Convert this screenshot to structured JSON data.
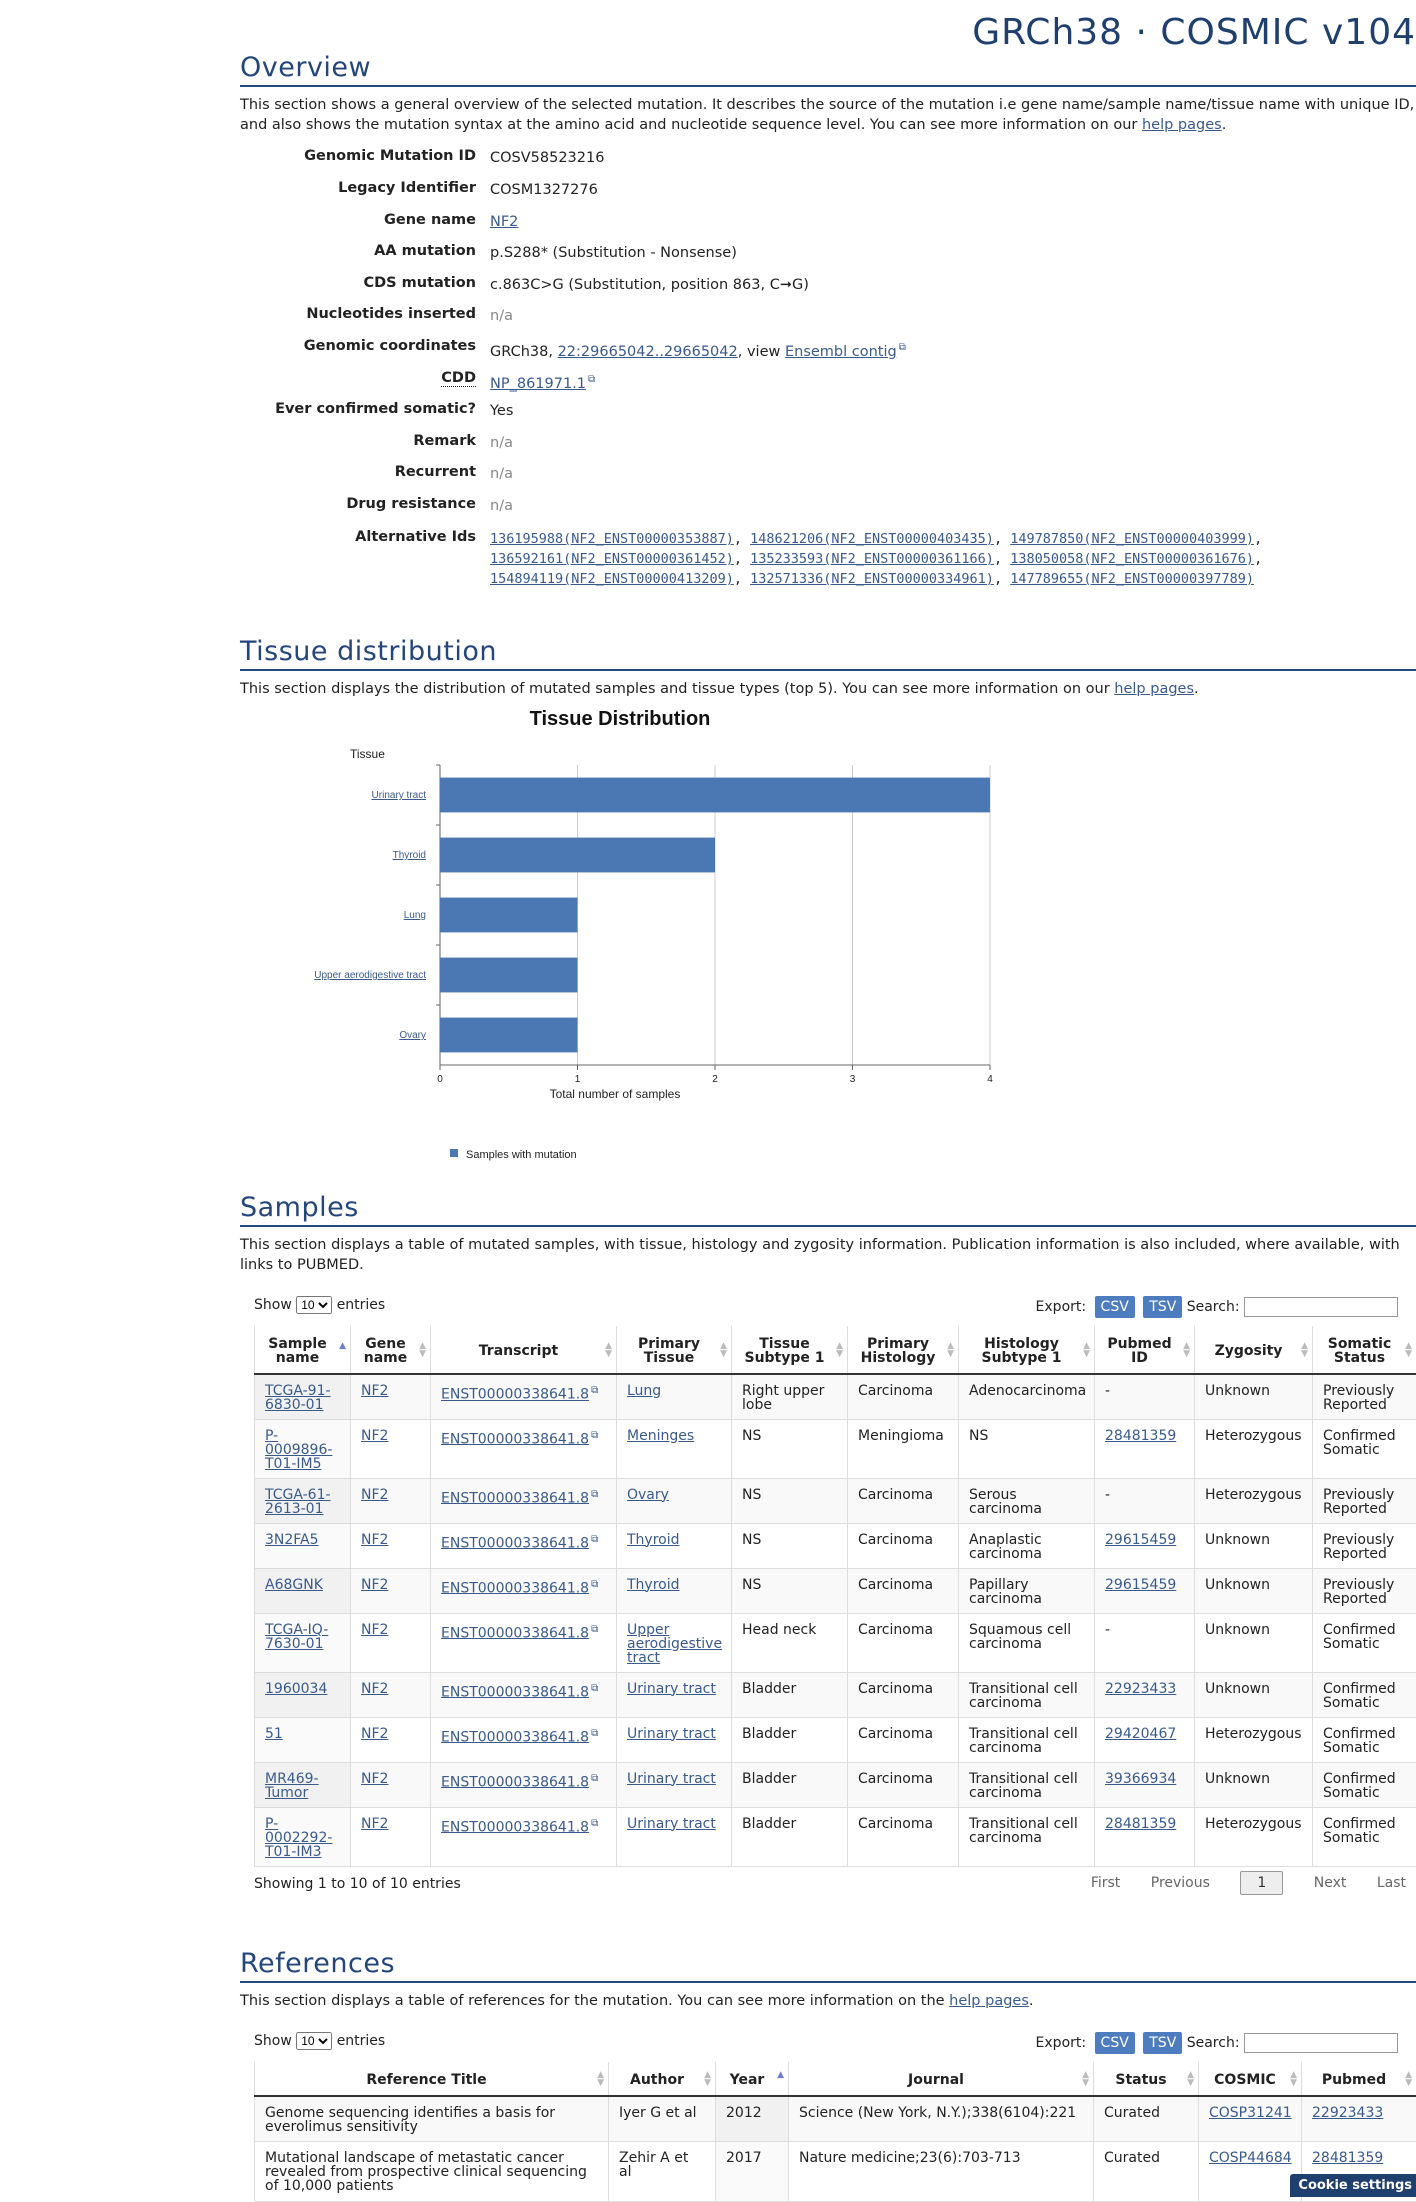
{
  "header": {
    "build": "GRCh38 · COSMIC v104"
  },
  "overview": {
    "title": "Overview",
    "desc_pre": "This section shows a general overview of the selected mutation. It describes the source of the mutation i.e gene name/sample name/tissue name with unique ID, and also shows the mutation syntax at the amino acid and nucleotide sequence level. You can see more information on our ",
    "desc_link": "help pages",
    "desc_post": ".",
    "fields": {
      "genomic_mutation_id": {
        "label": "Genomic Mutation ID",
        "value": "COSV58523216"
      },
      "legacy_identifier": {
        "label": "Legacy Identifier",
        "value": "COSM1327276"
      },
      "gene_name": {
        "label": "Gene name",
        "value": "NF2"
      },
      "aa_mutation": {
        "label": "AA mutation",
        "value": "p.S288* (Substitution - Nonsense)"
      },
      "cds_mutation": {
        "label": "CDS mutation",
        "value": "c.863C>G (Substitution, position 863, C➞G)"
      },
      "nucleotides_inserted": {
        "label": "Nucleotides inserted",
        "value": "n/a"
      },
      "genomic_coordinates": {
        "label": "Genomic coordinates",
        "prefix": "GRCh38, ",
        "coords": "22:29665042..29665042",
        "mid": ", view ",
        "contig": "Ensembl contig"
      },
      "cdd": {
        "label": "CDD",
        "value": "NP_861971.1"
      },
      "ever_confirmed_somatic": {
        "label": "Ever confirmed somatic?",
        "value": "Yes"
      },
      "remark": {
        "label": "Remark",
        "value": "n/a"
      },
      "recurrent": {
        "label": "Recurrent",
        "value": "n/a"
      },
      "drug_resistance": {
        "label": "Drug resistance",
        "value": "n/a"
      },
      "alternative_ids": {
        "label": "Alternative Ids"
      }
    },
    "alternative_ids": [
      "136195988(NF2_ENST00000353887)",
      "148621206(NF2_ENST00000403435)",
      "149787850(NF2_ENST00000403999)",
      "136592161(NF2_ENST00000361452)",
      "135233593(NF2_ENST00000361166)",
      "138050058(NF2_ENST00000361676)",
      "154894119(NF2_ENST00000413209)",
      "132571336(NF2_ENST00000334961)",
      "147789655(NF2_ENST00000397789)"
    ]
  },
  "tissue": {
    "title": "Tissue distribution",
    "desc_pre": "This section displays the distribution of mutated samples and tissue types (top 5). You can see more information on our ",
    "desc_link": "help pages",
    "desc_post": "."
  },
  "chart_data": {
    "type": "bar",
    "orientation": "horizontal",
    "title": "Tissue Distribution",
    "categories": [
      "Urinary tract",
      "Thyroid",
      "Lung",
      "Upper aerodigestive tract",
      "Ovary"
    ],
    "series": [
      {
        "name": "Samples with mutation",
        "values": [
          4,
          2,
          1,
          1,
          1
        ]
      }
    ],
    "xlabel": "Total number of samples",
    "ylabel": "Tissue",
    "xlim": [
      0,
      4
    ],
    "xticks": [
      0,
      1,
      2,
      3,
      4
    ],
    "grid": true,
    "legend": "bottom",
    "color": "#4b77b3"
  },
  "samples": {
    "title": "Samples",
    "desc": "This section displays a table of mutated samples, with tissue, histology and zygosity information. Publication information is also included, where available, with links to PUBMED.",
    "show_label": "Show",
    "page_size": "10",
    "entries_label": "entries",
    "export_label": "Export:",
    "csv": "CSV",
    "tsv": "TSV",
    "search_label": "Search:",
    "columns": [
      "Sample name",
      "Gene name",
      "Transcript",
      "Primary Tissue",
      "Tissue Subtype 1",
      "Primary Histology",
      "Histology Subtype 1",
      "Pubmed ID",
      "Zygosity",
      "Somatic Status"
    ],
    "rows": [
      [
        "TCGA-91-6830-01",
        "NF2",
        "ENST00000338641.8",
        "Lung",
        "Right upper lobe",
        "Carcinoma",
        "Adenocarcinoma",
        "-",
        "Unknown",
        "Previously Reported"
      ],
      [
        "P-0009896-T01-IM5",
        "NF2",
        "ENST00000338641.8",
        "Meninges",
        "NS",
        "Meningioma",
        "NS",
        "28481359",
        "Heterozygous",
        "Confirmed Somatic"
      ],
      [
        "TCGA-61-2613-01",
        "NF2",
        "ENST00000338641.8",
        "Ovary",
        "NS",
        "Carcinoma",
        "Serous carcinoma",
        "-",
        "Heterozygous",
        "Previously Reported"
      ],
      [
        "3N2FA5",
        "NF2",
        "ENST00000338641.8",
        "Thyroid",
        "NS",
        "Carcinoma",
        "Anaplastic carcinoma",
        "29615459",
        "Unknown",
        "Previously Reported"
      ],
      [
        "A68GNK",
        "NF2",
        "ENST00000338641.8",
        "Thyroid",
        "NS",
        "Carcinoma",
        "Papillary carcinoma",
        "29615459",
        "Unknown",
        "Previously Reported"
      ],
      [
        "TCGA-IQ-7630-01",
        "NF2",
        "ENST00000338641.8",
        "Upper aerodigestive tract",
        "Head neck",
        "Carcinoma",
        "Squamous cell carcinoma",
        "-",
        "Unknown",
        "Confirmed Somatic"
      ],
      [
        "1960034",
        "NF2",
        "ENST00000338641.8",
        "Urinary tract",
        "Bladder",
        "Carcinoma",
        "Transitional cell carcinoma",
        "22923433",
        "Unknown",
        "Confirmed Somatic"
      ],
      [
        "51",
        "NF2",
        "ENST00000338641.8",
        "Urinary tract",
        "Bladder",
        "Carcinoma",
        "Transitional cell carcinoma",
        "29420467",
        "Heterozygous",
        "Confirmed Somatic"
      ],
      [
        "MR469-Tumor",
        "NF2",
        "ENST00000338641.8",
        "Urinary tract",
        "Bladder",
        "Carcinoma",
        "Transitional cell carcinoma",
        "39366934",
        "Unknown",
        "Confirmed Somatic"
      ],
      [
        "P-0002292-T01-IM3",
        "NF2",
        "ENST00000338641.8",
        "Urinary tract",
        "Bladder",
        "Carcinoma",
        "Transitional cell carcinoma",
        "28481359",
        "Heterozygous",
        "Confirmed Somatic"
      ]
    ],
    "info": "Showing 1 to 10 of 10 entries",
    "pager": {
      "first": "First",
      "previous": "Previous",
      "current": "1",
      "next": "Next",
      "last": "Last"
    }
  },
  "references": {
    "title": "References",
    "desc_pre": "This section displays a table of references for the mutation. You can see more information on the ",
    "desc_link": "help pages",
    "desc_post": ".",
    "show_label": "Show",
    "page_size": "10",
    "entries_label": "entries",
    "export_label": "Export:",
    "csv": "CSV",
    "tsv": "TSV",
    "search_label": "Search:",
    "columns": [
      "Reference Title",
      "Author",
      "Year",
      "Journal",
      "Status",
      "COSMIC",
      "Pubmed"
    ],
    "rows": [
      [
        "Genome sequencing identifies a basis for everolimus sensitivity",
        "Iyer G et al",
        "2012",
        "Science (New York, N.Y.);338(6104):221",
        "Curated",
        "COSP31241",
        "22923433"
      ],
      [
        "Mutational landscape of metastatic cancer revealed from prospective clinical sequencing of 10,000 patients",
        "Zehir A et al",
        "2017",
        "Nature medicine;23(6):703-713",
        "Curated",
        "COSP44684",
        "28481359"
      ]
    ]
  },
  "cookie": {
    "label": "Cookie settings"
  }
}
